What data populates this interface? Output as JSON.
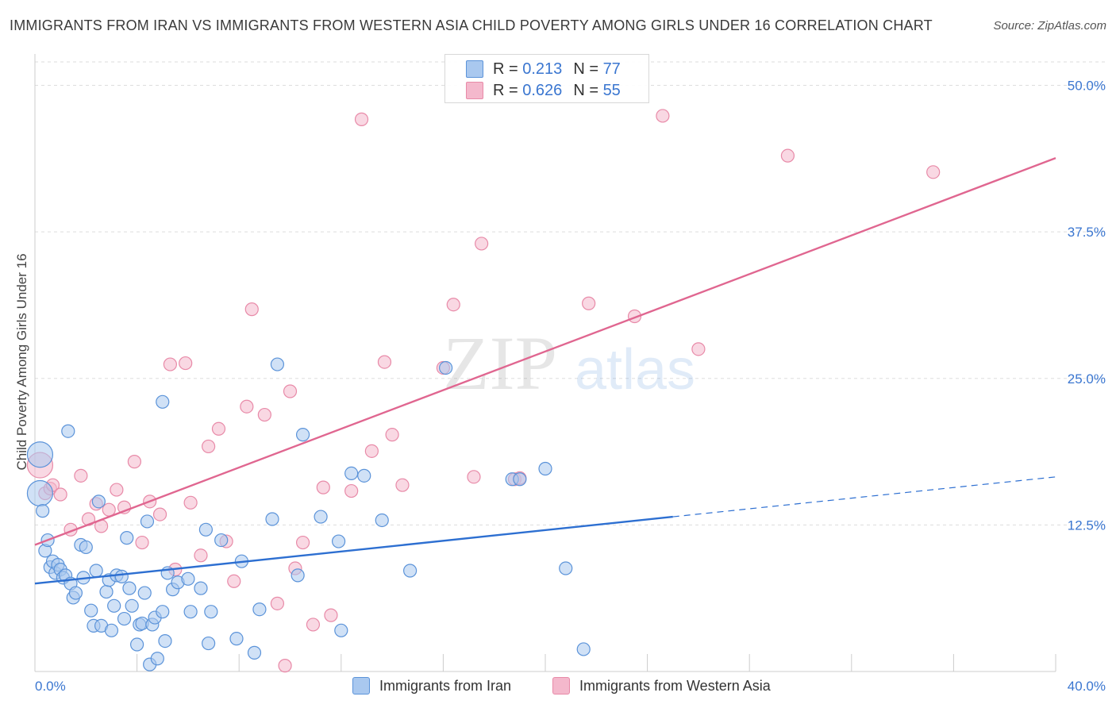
{
  "header": {
    "title": "IMMIGRANTS FROM IRAN VS IMMIGRANTS FROM WESTERN ASIA CHILD POVERTY AMONG GIRLS UNDER 16 CORRELATION CHART",
    "source": "Source: ZipAtlas.com"
  },
  "watermark": {
    "left": "ZIP",
    "right": "atlas"
  },
  "colors": {
    "iran_fill": "#a9c8ef",
    "iran_stroke": "#5b93d9",
    "iran_line": "#2d6fd1",
    "wa_fill": "#f4b8cc",
    "wa_stroke": "#e88aa8",
    "wa_line": "#e06690",
    "tick_label": "#3a76d0",
    "grid": "#dddddd"
  },
  "legend": {
    "rows": [
      {
        "r_label": "R =",
        "r_value": "0.213",
        "n_label": "N =",
        "n_value": "77"
      },
      {
        "r_label": "R =",
        "r_value": "0.626",
        "n_label": "N =",
        "n_value": "55"
      }
    ]
  },
  "bottom_legend": {
    "items": [
      {
        "label": "Immigrants from Iran"
      },
      {
        "label": "Immigrants from Western Asia"
      }
    ]
  },
  "chart_data": {
    "type": "scatter",
    "xlabel": "",
    "ylabel": "Child Poverty Among Girls Under 16",
    "xlim": [
      0,
      40
    ],
    "ylim": [
      0,
      52
    ],
    "x_tick_labels": [
      "0.0%",
      "40.0%"
    ],
    "y_ticks": [
      12.5,
      25.0,
      37.5,
      50.0
    ],
    "y_tick_labels": [
      "12.5%",
      "25.0%",
      "37.5%",
      "50.0%"
    ],
    "grid": true,
    "legend_position": "top-center",
    "series": [
      {
        "name": "Immigrants from Iran",
        "r": 0.213,
        "n": 77,
        "trend": {
          "x0": 0,
          "y0": 7.5,
          "x1": 25,
          "y1": 13.2,
          "dashed_to_x": 40,
          "dashed_to_y": 16.6
        },
        "points": [
          [
            0.2,
            18.5
          ],
          [
            0.2,
            15.2
          ],
          [
            0.3,
            13.7
          ],
          [
            0.4,
            10.3
          ],
          [
            0.5,
            11.2
          ],
          [
            0.6,
            8.9
          ],
          [
            0.7,
            9.4
          ],
          [
            0.8,
            8.4
          ],
          [
            0.9,
            9.1
          ],
          [
            1.0,
            8.7
          ],
          [
            1.1,
            8.0
          ],
          [
            1.2,
            8.2
          ],
          [
            1.4,
            7.5
          ],
          [
            1.5,
            6.3
          ],
          [
            1.6,
            6.7
          ],
          [
            1.8,
            10.8
          ],
          [
            1.9,
            8.0
          ],
          [
            2.0,
            10.6
          ],
          [
            2.2,
            5.2
          ],
          [
            2.3,
            3.9
          ],
          [
            2.4,
            8.6
          ],
          [
            2.5,
            14.5
          ],
          [
            2.6,
            3.9
          ],
          [
            2.8,
            6.8
          ],
          [
            2.9,
            7.8
          ],
          [
            3.0,
            3.5
          ],
          [
            3.1,
            5.6
          ],
          [
            3.2,
            8.2
          ],
          [
            3.4,
            8.1
          ],
          [
            3.5,
            4.5
          ],
          [
            3.6,
            11.4
          ],
          [
            3.7,
            7.1
          ],
          [
            3.8,
            5.6
          ],
          [
            4.0,
            2.3
          ],
          [
            4.1,
            4.0
          ],
          [
            4.2,
            4.1
          ],
          [
            4.3,
            6.7
          ],
          [
            4.4,
            12.8
          ],
          [
            4.5,
            0.6
          ],
          [
            4.6,
            4.0
          ],
          [
            4.7,
            4.6
          ],
          [
            4.8,
            1.1
          ],
          [
            5.0,
            5.1
          ],
          [
            5.1,
            2.6
          ],
          [
            5.2,
            8.4
          ],
          [
            5.4,
            7.0
          ],
          [
            5.6,
            7.6
          ],
          [
            6.0,
            7.9
          ],
          [
            6.1,
            5.1
          ],
          [
            6.5,
            7.1
          ],
          [
            6.7,
            12.1
          ],
          [
            6.8,
            2.4
          ],
          [
            6.9,
            5.1
          ],
          [
            7.3,
            11.2
          ],
          [
            7.9,
            2.8
          ],
          [
            8.1,
            9.4
          ],
          [
            8.6,
            1.6
          ],
          [
            8.8,
            5.3
          ],
          [
            9.3,
            13.0
          ],
          [
            9.5,
            26.2
          ],
          [
            10.3,
            8.2
          ],
          [
            10.5,
            20.2
          ],
          [
            11.2,
            13.2
          ],
          [
            11.9,
            11.1
          ],
          [
            12.4,
            16.9
          ],
          [
            13.6,
            12.9
          ],
          [
            14.7,
            8.6
          ],
          [
            1.3,
            20.5
          ],
          [
            5.0,
            23.0
          ],
          [
            16.1,
            25.9
          ],
          [
            18.7,
            16.4
          ],
          [
            19.0,
            16.4
          ],
          [
            20.0,
            17.3
          ],
          [
            20.8,
            8.8
          ],
          [
            21.5,
            1.9
          ],
          [
            12.9,
            16.7
          ],
          [
            12.0,
            3.5
          ]
        ]
      },
      {
        "name": "Immigrants from Western Asia",
        "r": 0.626,
        "n": 55,
        "trend": {
          "x0": 0,
          "y0": 10.8,
          "x1": 40,
          "y1": 43.8
        },
        "points": [
          [
            0.2,
            17.6
          ],
          [
            0.4,
            15.2
          ],
          [
            0.6,
            15.6
          ],
          [
            0.7,
            15.9
          ],
          [
            1.0,
            15.1
          ],
          [
            1.4,
            12.1
          ],
          [
            1.8,
            16.7
          ],
          [
            2.1,
            13.0
          ],
          [
            2.4,
            14.3
          ],
          [
            2.6,
            12.4
          ],
          [
            2.9,
            13.8
          ],
          [
            3.2,
            15.5
          ],
          [
            3.5,
            14.0
          ],
          [
            3.9,
            17.9
          ],
          [
            4.2,
            11.0
          ],
          [
            4.5,
            14.5
          ],
          [
            4.9,
            13.4
          ],
          [
            5.3,
            26.2
          ],
          [
            5.5,
            8.7
          ],
          [
            5.9,
            26.3
          ],
          [
            6.1,
            14.4
          ],
          [
            6.5,
            9.9
          ],
          [
            6.8,
            19.2
          ],
          [
            7.2,
            20.7
          ],
          [
            7.5,
            11.1
          ],
          [
            7.8,
            7.7
          ],
          [
            8.3,
            22.6
          ],
          [
            8.5,
            30.9
          ],
          [
            9.0,
            21.9
          ],
          [
            9.5,
            5.8
          ],
          [
            10.0,
            23.9
          ],
          [
            10.2,
            8.8
          ],
          [
            10.5,
            11.0
          ],
          [
            10.9,
            4.0
          ],
          [
            11.3,
            15.7
          ],
          [
            11.6,
            4.8
          ],
          [
            12.4,
            15.4
          ],
          [
            12.8,
            47.1
          ],
          [
            13.2,
            18.8
          ],
          [
            13.7,
            26.4
          ],
          [
            14.0,
            20.2
          ],
          [
            14.4,
            15.9
          ],
          [
            16.0,
            25.9
          ],
          [
            16.4,
            31.3
          ],
          [
            17.2,
            16.6
          ],
          [
            17.5,
            36.5
          ],
          [
            18.8,
            16.4
          ],
          [
            19.0,
            16.5
          ],
          [
            21.7,
            31.4
          ],
          [
            23.5,
            30.3
          ],
          [
            24.6,
            47.4
          ],
          [
            26.0,
            27.5
          ],
          [
            29.5,
            44.0
          ],
          [
            35.2,
            42.6
          ],
          [
            9.8,
            0.5
          ]
        ]
      }
    ]
  }
}
